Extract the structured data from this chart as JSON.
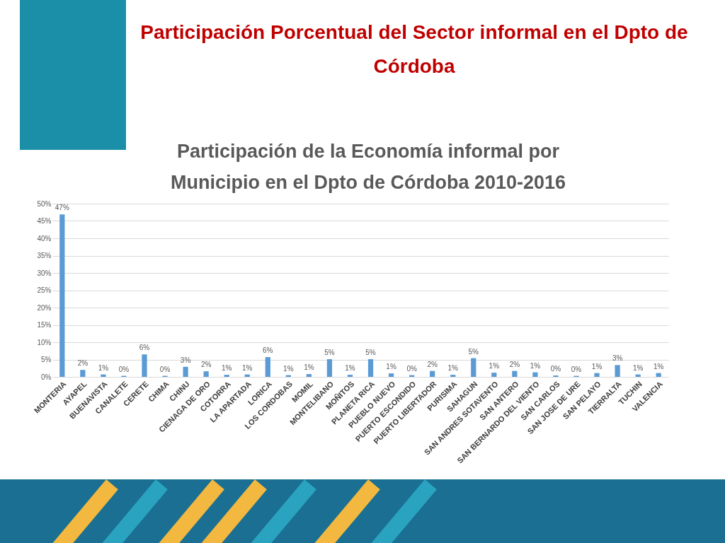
{
  "chart_data": {
    "type": "bar",
    "title": "Participación Porcentual del Sector informal en el Dpto de Córdoba",
    "subtitle": "Participación de la Economía informal por Municipio en el Dpto de Córdoba 2010-2016",
    "categories": [
      "MONTERIA",
      "AYAPEL",
      "BUENAVISTA",
      "CANALETE",
      "CERETE",
      "CHIMA",
      "CHINU",
      "CIENAGA DE ORO",
      "COTORRA",
      "LA APARTADA",
      "LORICA",
      "LOS CORDOBAS",
      "MOMIL",
      "MONTELIBANO",
      "MOÑITOS",
      "PLANETA RICA",
      "PUEBLO NUEVO",
      "PUERTO ESCONDIDO",
      "PUERTO LIBERTADOR",
      "PURISIMA",
      "SAHAGUN",
      "SAN ANDRES SOTAVENTO",
      "SAN ANTERO",
      "SAN BERNARDO DEL VIENTO",
      "SAN CARLOS",
      "SAN JOSE DE URE",
      "SAN PELAYO",
      "TIERRALTA",
      "TUCHIN",
      "VALENCIA"
    ],
    "values": [
      46.9,
      2.0,
      0.7,
      0.3,
      6.5,
      0.3,
      2.9,
      1.6,
      0.6,
      0.7,
      5.7,
      0.5,
      0.8,
      5.1,
      0.6,
      5.1,
      1.0,
      0.5,
      1.7,
      0.6,
      5.4,
      1.2,
      1.7,
      1.3,
      0.4,
      0.3,
      1.1,
      3.4,
      0.7,
      1.1
    ],
    "value_labels": [
      "47%",
      "2%",
      "1%",
      "0%",
      "6%",
      "0%",
      "3%",
      "2%",
      "1%",
      "1%",
      "6%",
      "1%",
      "1%",
      "5%",
      "1%",
      "5%",
      "1%",
      "0%",
      "2%",
      "1%",
      "5%",
      "1%",
      "2%",
      "1%",
      "0%",
      "0%",
      "1%",
      "3%",
      "1%",
      "1%"
    ],
    "color": "#5b9bd5",
    "ylim": [
      0,
      50
    ],
    "yticks": [
      {
        "value": 0,
        "label": "0%"
      },
      {
        "value": 5,
        "label": "5%"
      },
      {
        "value": 10,
        "label": "10%"
      },
      {
        "value": 15,
        "label": "15%"
      },
      {
        "value": 20,
        "label": "20%"
      },
      {
        "value": 25,
        "label": "25%"
      },
      {
        "value": 30,
        "label": "30%"
      },
      {
        "value": 35,
        "label": "35%"
      },
      {
        "value": 40,
        "label": "40%"
      },
      {
        "value": 45,
        "label": "45%"
      },
      {
        "value": 50,
        "label": "50%"
      }
    ],
    "grid": "y"
  }
}
